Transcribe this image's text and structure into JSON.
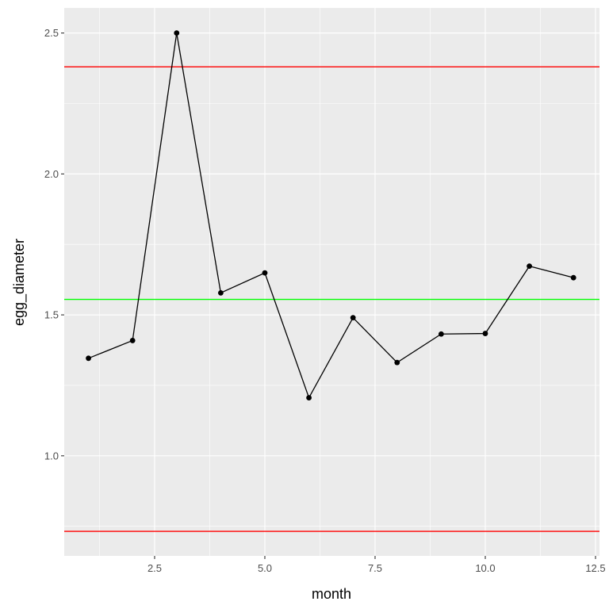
{
  "chart_data": {
    "type": "line",
    "title": "",
    "xlabel": "month",
    "ylabel": "egg_diameter",
    "x": [
      1,
      2,
      3,
      4,
      5,
      6,
      7,
      8,
      9,
      10,
      11,
      12
    ],
    "series": [
      {
        "name": "egg_diameter",
        "values": [
          1.346,
          1.409,
          2.5,
          1.578,
          1.649,
          1.206,
          1.49,
          1.331,
          1.432,
          1.434,
          1.673,
          1.632
        ],
        "color": "#000000",
        "markers": true
      }
    ],
    "hlines": [
      {
        "name": "upper-control-limit",
        "y": 2.38,
        "color": "#ff0000"
      },
      {
        "name": "center-line",
        "y": 1.555,
        "color": "#00ff00"
      },
      {
        "name": "lower-control-limit",
        "y": 0.732,
        "color": "#ff0000"
      }
    ],
    "xlim": [
      0.45,
      12.59
    ],
    "ylim": [
      0.645,
      2.589
    ],
    "x_ticks": [
      2.5,
      5.0,
      7.5,
      10.0,
      12.5
    ],
    "x_tick_labels": [
      "2.5",
      "5.0",
      "7.5",
      "10.0",
      "12.5"
    ],
    "y_ticks": [
      1.0,
      1.5,
      2.0,
      2.5
    ],
    "y_tick_labels": [
      "1.0",
      "1.5",
      "2.0",
      "2.5"
    ],
    "grid": true,
    "legend": "none",
    "panel_background": "#ebebeb"
  }
}
